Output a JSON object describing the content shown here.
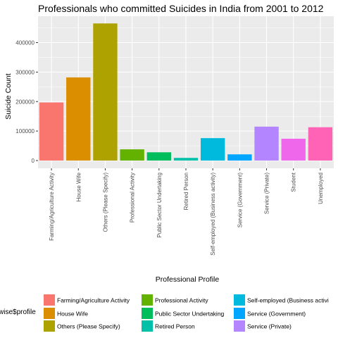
{
  "chart_data": {
    "type": "bar",
    "title": "Professionals who committed Suicides in India from 2001 to 2012",
    "xlabel": "Professional Profile",
    "ylabel": "Suicide Count",
    "ylim": [
      0,
      480000
    ],
    "yticks": [
      0,
      100000,
      200000,
      300000,
      400000
    ],
    "ytick_labels": [
      "0",
      "100000",
      "200000",
      "300000",
      "400000"
    ],
    "grid": true,
    "legend_title": "wise$profile",
    "legend_position": "bottom",
    "categories": [
      "Farming/Agriculture Activity",
      "House Wife",
      "Others (Please Specify)",
      "Professional Activity",
      "Public Sector Undertaking",
      "Retired Person",
      "Self-employed (Business activity)",
      "Service (Government)",
      "Service (Private)",
      "Student",
      "Unemployed"
    ],
    "values": [
      197000,
      282000,
      465000,
      38000,
      28000,
      9000,
      76000,
      21000,
      115000,
      74000,
      113000
    ],
    "colors": [
      "#F8766D",
      "#DB8E00",
      "#AEA200",
      "#64B200",
      "#00BD5C",
      "#00C1A7",
      "#00BADE",
      "#00A6FF",
      "#B385FF",
      "#EF67EB",
      "#FF63B6"
    ],
    "legend_entries": [
      "Farming/Agriculture Activity",
      "House Wife",
      "Others (Please Specify)",
      "Professional Activity",
      "Public Sector Undertaking",
      "Retired Person",
      "Self-employed (Business activi",
      "Service (Government)",
      "Service (Private)"
    ]
  }
}
